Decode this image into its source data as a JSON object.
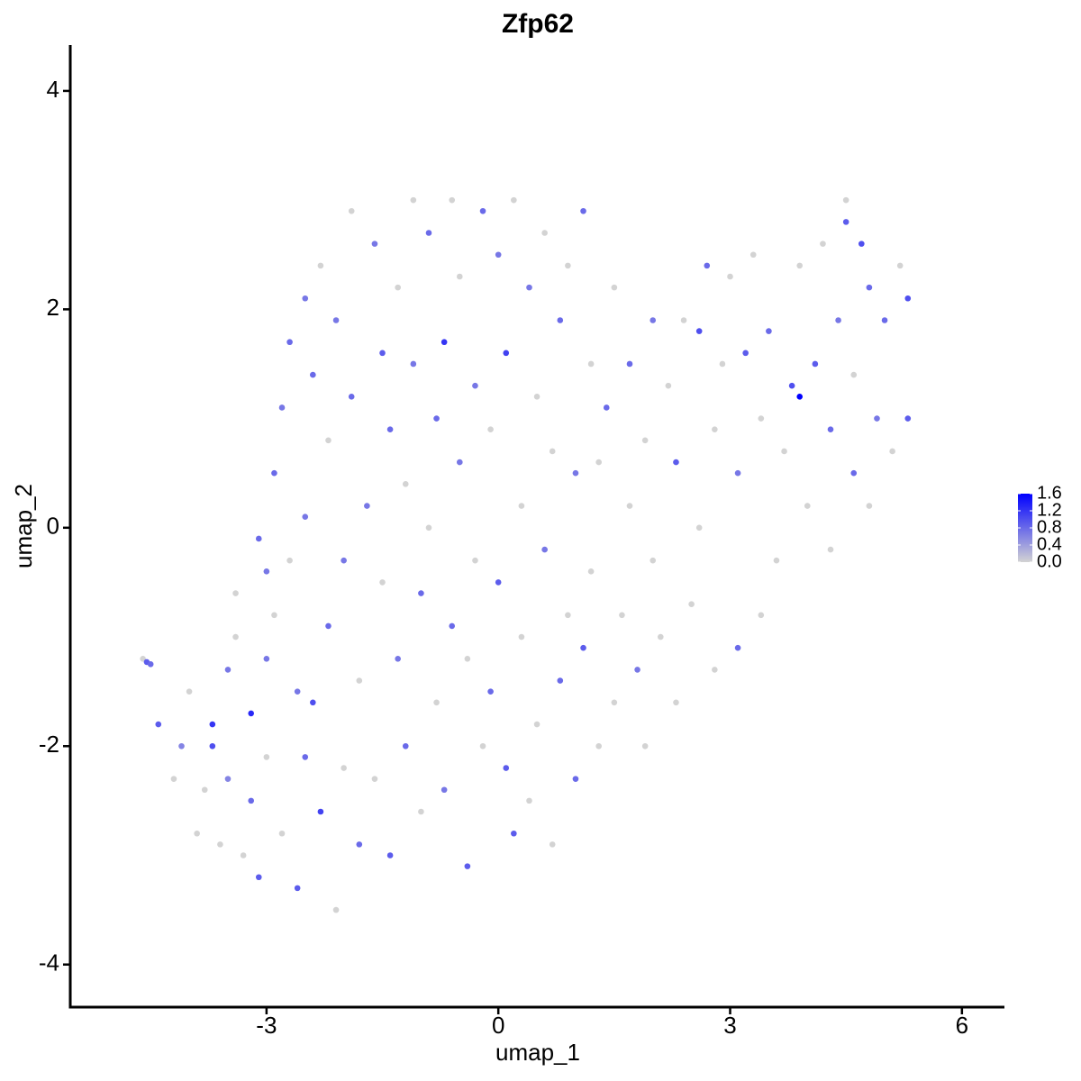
{
  "chart_data": {
    "type": "scatter",
    "title": "Zfp62",
    "xlabel": "umap_1",
    "ylabel": "umap_2",
    "xlim": [
      -5.54,
      6.55
    ],
    "ylim": [
      -4.39,
      4.42
    ],
    "xticks": [
      -3,
      0,
      3,
      6
    ],
    "yticks": [
      -4,
      -2,
      0,
      2,
      4
    ],
    "low_color": "#d3d3d3",
    "high_color": "#0000ff",
    "colorlim": [
      0,
      1.6
    ],
    "colorticks": [
      {
        "value": 0,
        "label": "0.0"
      },
      {
        "value": 0.4,
        "label": "0.4"
      },
      {
        "value": 0.8,
        "label": "0.8"
      },
      {
        "value": 1.2,
        "label": "1.2"
      },
      {
        "value": 1.6,
        "label": "1.6"
      }
    ],
    "x": [
      -4.6,
      -4.55,
      -4.5,
      -4.4,
      -4.2,
      -4.1,
      -4.0,
      -3.9,
      -3.8,
      -3.7,
      -3.7,
      -3.6,
      -3.5,
      -3.5,
      -3.4,
      -3.4,
      -3.3,
      -3.2,
      -3.2,
      -3.1,
      -3.1,
      -3.0,
      -3.0,
      -3.0,
      -2.9,
      -2.9,
      -2.8,
      -2.8,
      -2.7,
      -2.7,
      -2.6,
      -2.6,
      -2.5,
      -2.5,
      -2.5,
      -2.4,
      -2.4,
      -2.3,
      -2.3,
      -2.2,
      -2.2,
      -2.1,
      -2.1,
      -2.0,
      -2.0,
      -1.9,
      -1.9,
      -1.8,
      -1.8,
      -1.7,
      -1.6,
      -1.6,
      -1.5,
      -1.5,
      -1.4,
      -1.4,
      -1.3,
      -1.3,
      -1.2,
      -1.2,
      -1.1,
      -1.1,
      -1.0,
      -1.0,
      -0.9,
      -0.9,
      -0.8,
      -0.8,
      -0.7,
      -0.7,
      -0.6,
      -0.6,
      -0.5,
      -0.5,
      -0.4,
      -0.4,
      -0.3,
      -0.3,
      -0.2,
      -0.2,
      -0.1,
      -0.1,
      0.0,
      0.0,
      0.1,
      0.1,
      0.2,
      0.2,
      0.3,
      0.3,
      0.4,
      0.4,
      0.5,
      0.5,
      0.6,
      0.6,
      0.7,
      0.7,
      0.8,
      0.8,
      0.9,
      0.9,
      1.0,
      1.0,
      1.1,
      1.1,
      1.2,
      1.2,
      1.3,
      1.3,
      1.4,
      1.5,
      1.5,
      1.6,
      1.7,
      1.7,
      1.8,
      1.9,
      1.9,
      2.0,
      2.0,
      2.1,
      2.2,
      2.3,
      2.3,
      2.4,
      2.5,
      2.6,
      2.6,
      2.7,
      2.8,
      2.8,
      2.9,
      3.0,
      3.1,
      3.1,
      3.2,
      3.3,
      3.4,
      3.4,
      3.5,
      3.6,
      3.7,
      3.8,
      3.9,
      3.9,
      4.0,
      4.1,
      4.2,
      4.3,
      4.3,
      4.4,
      4.5,
      4.5,
      4.6,
      4.6,
      4.7,
      4.8,
      4.8,
      4.9,
      5.0,
      5.1,
      5.2,
      5.3,
      5.3
    ],
    "y": [
      -1.2,
      -1.23,
      -1.25,
      -1.8,
      -2.3,
      -2.0,
      -1.5,
      -2.8,
      -2.4,
      -2.0,
      -1.8,
      -2.9,
      -1.3,
      -2.3,
      -0.6,
      -1.0,
      -3.0,
      -2.5,
      -1.7,
      -0.1,
      -3.2,
      -0.4,
      -1.2,
      -2.1,
      0.5,
      -0.8,
      1.1,
      -2.8,
      1.7,
      -0.3,
      -3.3,
      -1.5,
      2.1,
      0.1,
      -2.1,
      -1.6,
      1.4,
      -2.6,
      2.4,
      -0.9,
      0.8,
      -3.5,
      1.9,
      -2.2,
      -0.3,
      2.9,
      1.2,
      -2.9,
      -1.4,
      0.2,
      2.6,
      -2.3,
      1.6,
      -0.5,
      -3.0,
      0.9,
      2.2,
      -1.2,
      -2.0,
      0.4,
      3.0,
      1.5,
      -2.6,
      -0.6,
      2.7,
      0.0,
      1.0,
      -1.6,
      1.7,
      -2.4,
      3.0,
      -0.9,
      2.3,
      0.6,
      -3.1,
      -1.2,
      1.3,
      -0.3,
      2.9,
      -2.0,
      0.9,
      -1.5,
      2.5,
      -0.5,
      -2.2,
      1.6,
      3.0,
      -2.8,
      0.2,
      -1.0,
      2.2,
      -2.5,
      1.2,
      -1.8,
      2.7,
      -0.2,
      0.7,
      -2.9,
      -1.4,
      1.9,
      -0.8,
      2.4,
      0.5,
      -2.3,
      2.9,
      -1.1,
      1.5,
      -0.4,
      0.6,
      -2.0,
      1.1,
      -1.6,
      2.2,
      -0.8,
      0.2,
      1.5,
      -1.3,
      -2.0,
      0.8,
      1.9,
      -0.3,
      -1.0,
      1.3,
      0.6,
      -1.6,
      1.9,
      -0.7,
      1.8,
      0.0,
      2.4,
      -1.3,
      0.9,
      1.5,
      2.3,
      -1.1,
      0.5,
      1.6,
      2.5,
      -0.8,
      1.0,
      1.8,
      -0.3,
      0.7,
      1.3,
      1.2,
      2.4,
      0.2,
      1.5,
      2.6,
      -0.2,
      0.9,
      1.9,
      3.0,
      2.8,
      0.5,
      1.4,
      2.6,
      0.2,
      2.2,
      1.0,
      1.9,
      0.7,
      2.4,
      2.1,
      1.0
    ],
    "values": [
      0,
      0.9,
      0.8,
      0.9,
      0,
      0.6,
      0,
      0,
      0,
      1.0,
      1.2,
      0,
      0.7,
      0.6,
      0,
      0,
      0,
      0.8,
      1.3,
      0.8,
      0.9,
      0.7,
      0.7,
      0,
      0.8,
      0,
      0.7,
      0,
      0.8,
      0,
      0.9,
      0.7,
      0.7,
      0.7,
      0.8,
      1.0,
      0.8,
      1.1,
      0,
      0.8,
      0,
      0,
      0.7,
      0,
      0.7,
      0,
      0.8,
      0.8,
      0,
      0.7,
      0.7,
      0,
      0.9,
      0,
      0.9,
      0.8,
      0,
      0.7,
      0.8,
      0,
      0,
      0.7,
      0,
      0.8,
      0.8,
      0,
      0.8,
      0,
      1.2,
      0.7,
      0,
      0.8,
      0,
      0.7,
      0.9,
      0,
      0.7,
      0,
      0.8,
      0,
      0,
      0.8,
      0.7,
      0.9,
      0.9,
      1.1,
      0,
      0.9,
      0,
      0,
      0.7,
      0,
      0,
      0,
      0,
      0.7,
      0,
      0,
      0.8,
      0.8,
      0,
      0,
      0.7,
      0.8,
      0.8,
      0.9,
      0,
      0,
      0,
      0,
      0.8,
      0,
      0,
      0,
      0,
      0.8,
      0.7,
      0,
      0,
      0.7,
      0,
      0,
      0,
      0.9,
      0,
      0,
      0,
      1.0,
      0,
      0.8,
      0,
      0,
      0,
      0,
      0.8,
      0.7,
      0.9,
      0,
      0,
      0,
      0.8,
      0,
      0,
      1.0,
      1.6,
      0,
      0,
      0.9,
      0,
      0,
      0.8,
      0.7,
      0,
      0.9,
      0.8,
      0,
      1.0,
      0,
      0.8,
      0.7,
      0.8,
      0,
      0,
      1.0,
      0.9
    ]
  }
}
